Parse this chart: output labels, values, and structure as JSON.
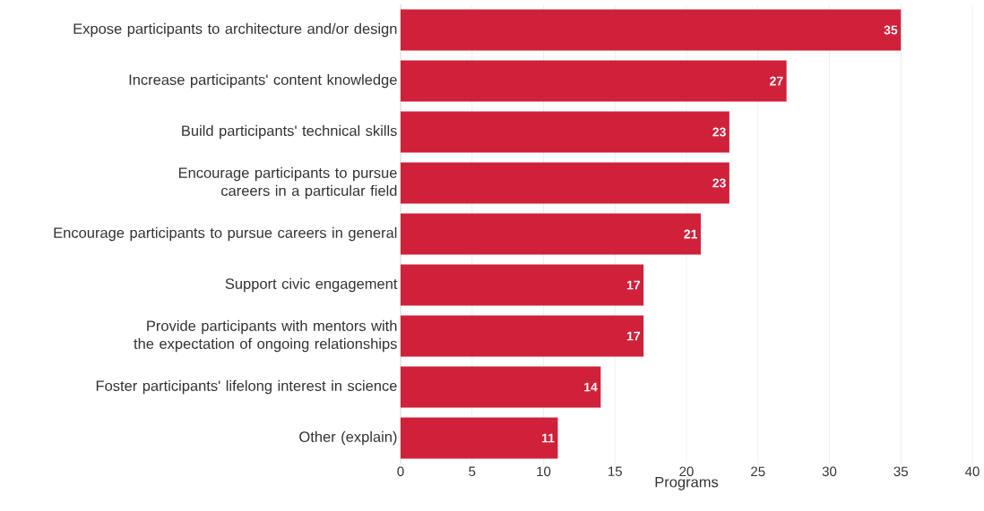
{
  "chart_data": {
    "type": "bar",
    "orientation": "horizontal",
    "xlabel": "Programs",
    "categories": [
      "Expose participants to architecture and/or design",
      "Increase participants' content knowledge",
      "Build participants' technical skills",
      "Encourage participants to pursue careers in a particular field",
      "Encourage participants to pursue careers in general",
      "Support civic engagement",
      "Provide participants with mentors with the expectation of ongoing relationships",
      "Foster participants' lifelong interest in science",
      "Other (explain)"
    ],
    "values": [
      35,
      27,
      23,
      23,
      21,
      17,
      17,
      14,
      11
    ],
    "color": "#d0213a",
    "xlim": [
      0,
      40
    ],
    "xticks": [
      0,
      5,
      10,
      15,
      20,
      25,
      30,
      35,
      40
    ],
    "grid": "x",
    "data_labels": true
  }
}
